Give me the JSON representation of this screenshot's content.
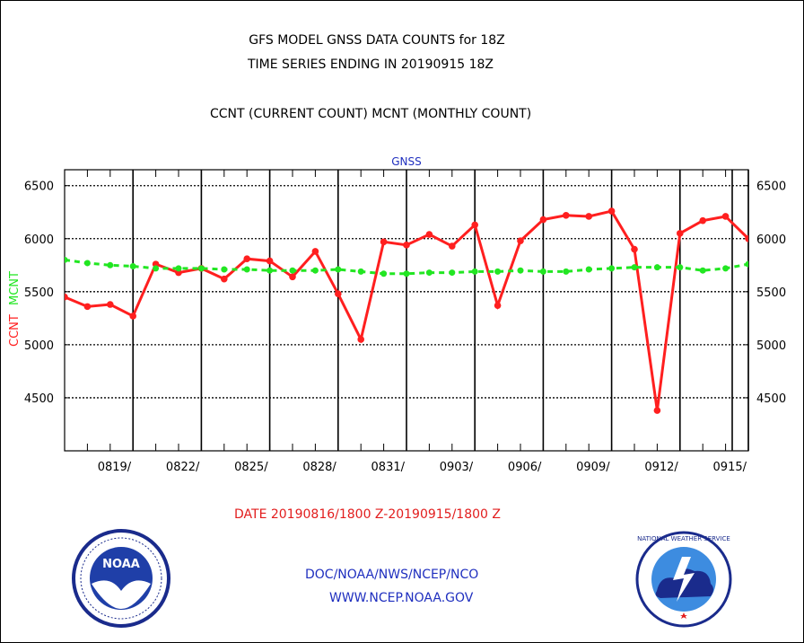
{
  "header": {
    "title_line1": "GFS MODEL GNSS DATA COUNTS for 18Z",
    "title_line2": "TIME SERIES ENDING IN 20190915 18Z",
    "subtitle": "CCNT (CURRENT COUNT) MCNT (MONTHLY COUNT)"
  },
  "footer": {
    "date_range": "DATE 20190816/1800 Z-20190915/1800 Z",
    "org": "DOC/NOAA/NWS/NCEP/NCO",
    "url": "WWW.NCEP.NOAA.GOV"
  },
  "logos": {
    "left": "NOAA",
    "right": "NATIONAL WEATHER SERVICE"
  },
  "colors": {
    "ccnt": "#ff1f1f",
    "mcnt": "#22e622",
    "text_red": "#e21d1d",
    "text_blue": "#1f2fbf"
  },
  "chart_data": {
    "type": "line",
    "title": "GNSS",
    "ylabel_left": [
      "CCNT",
      "MCNT"
    ],
    "ylim": [
      4000,
      6650
    ],
    "y_ticks": [
      4500,
      5000,
      5500,
      6000,
      6500
    ],
    "x_tick_labels": [
      "0819/",
      "0822/",
      "0825/",
      "0828/",
      "0831/",
      "0903/",
      "0906/",
      "0909/",
      "0912/",
      "0915/"
    ],
    "grid": true,
    "x": [
      "0816",
      "0817",
      "0818",
      "0819",
      "0820",
      "0821",
      "0822",
      "0823",
      "0824",
      "0825",
      "0826",
      "0827",
      "0828",
      "0829",
      "0830",
      "0831",
      "0901",
      "0902",
      "0903",
      "0904",
      "0905",
      "0906",
      "0907",
      "0908",
      "0909",
      "0910",
      "0911",
      "0912",
      "0913",
      "0914",
      "0915"
    ],
    "series": [
      {
        "name": "CCNT",
        "style": "solid",
        "values": [
          5450,
          5360,
          5380,
          5270,
          5760,
          5680,
          5720,
          5620,
          5810,
          5790,
          5640,
          5880,
          5480,
          5050,
          5970,
          5940,
          6040,
          5930,
          6130,
          5370,
          5980,
          6180,
          6220,
          6210,
          6260,
          5900,
          4380,
          6050,
          6170,
          6210,
          6000
        ]
      },
      {
        "name": "MCNT",
        "style": "dashed",
        "values": [
          5800,
          5770,
          5750,
          5740,
          5720,
          5720,
          5720,
          5710,
          5710,
          5700,
          5700,
          5700,
          5710,
          5690,
          5670,
          5670,
          5680,
          5680,
          5690,
          5690,
          5700,
          5690,
          5690,
          5710,
          5720,
          5730,
          5730,
          5730,
          5700,
          5720,
          5760
        ]
      }
    ]
  }
}
